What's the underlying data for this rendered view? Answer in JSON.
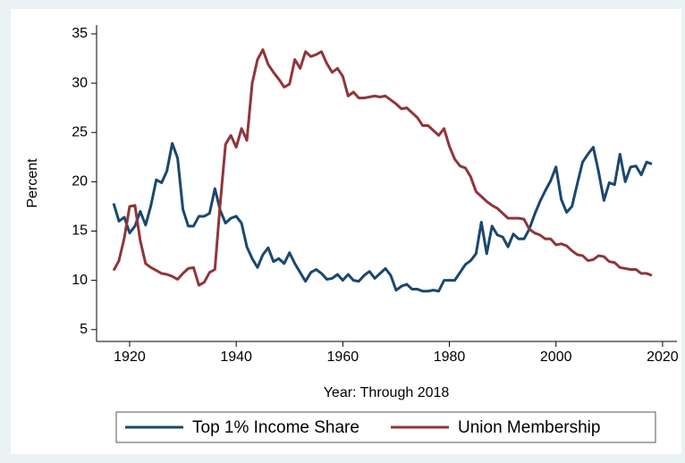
{
  "chart_data": {
    "type": "line",
    "x_label": "Year: Through 2018",
    "y_label": "Percent",
    "x": [
      1917,
      1918,
      1919,
      1920,
      1921,
      1922,
      1923,
      1924,
      1925,
      1926,
      1927,
      1928,
      1929,
      1930,
      1931,
      1932,
      1933,
      1934,
      1935,
      1936,
      1937,
      1938,
      1939,
      1940,
      1941,
      1942,
      1943,
      1944,
      1945,
      1946,
      1947,
      1948,
      1949,
      1950,
      1951,
      1952,
      1953,
      1954,
      1955,
      1956,
      1957,
      1958,
      1959,
      1960,
      1961,
      1962,
      1963,
      1964,
      1965,
      1966,
      1967,
      1968,
      1969,
      1970,
      1971,
      1972,
      1973,
      1974,
      1975,
      1976,
      1977,
      1978,
      1979,
      1980,
      1981,
      1982,
      1983,
      1984,
      1985,
      1986,
      1987,
      1988,
      1989,
      1990,
      1991,
      1992,
      1993,
      1994,
      1995,
      1996,
      1997,
      1998,
      1999,
      2000,
      2001,
      2002,
      2003,
      2004,
      2005,
      2006,
      2007,
      2008,
      2009,
      2010,
      2011,
      2012,
      2013,
      2014,
      2015,
      2016,
      2017,
      2018
    ],
    "series": [
      {
        "name": "Top 1% Income Share",
        "color": "#1a476f",
        "values": [
          17.8,
          16.0,
          16.4,
          14.8,
          15.5,
          17.0,
          15.6,
          17.6,
          20.2,
          19.9,
          21.1,
          23.9,
          22.4,
          17.2,
          15.5,
          15.5,
          16.5,
          16.5,
          16.8,
          19.3,
          17.1,
          15.8,
          16.3,
          16.5,
          15.8,
          13.4,
          12.2,
          11.3,
          12.6,
          13.3,
          11.9,
          12.2,
          11.7,
          12.8,
          11.7,
          10.8,
          9.9,
          10.8,
          11.1,
          10.7,
          10.1,
          10.2,
          10.6,
          10.0,
          10.6,
          10.0,
          9.9,
          10.5,
          10.9,
          10.2,
          10.7,
          11.2,
          10.5,
          9.0,
          9.4,
          9.6,
          9.1,
          9.1,
          8.9,
          8.9,
          9.0,
          8.9,
          10.0,
          10.0,
          10.0,
          10.8,
          11.6,
          12.0,
          12.7,
          15.9,
          12.7,
          15.5,
          14.6,
          14.4,
          13.4,
          14.7,
          14.2,
          14.2,
          15.2,
          16.7,
          18.0,
          19.1,
          20.1,
          21.5,
          18.2,
          16.9,
          17.5,
          19.8,
          22.0,
          22.8,
          23.5,
          21.0,
          18.1,
          19.9,
          19.7,
          22.8,
          20.0,
          21.5,
          21.6,
          20.7,
          22.0,
          21.8
        ]
      },
      {
        "name": "Union Membership",
        "color": "#90353b",
        "values": [
          11.0,
          12.0,
          14.3,
          17.5,
          17.6,
          14.0,
          11.7,
          11.3,
          11.0,
          10.7,
          10.6,
          10.4,
          10.1,
          10.7,
          11.2,
          11.3,
          9.5,
          9.8,
          10.8,
          11.1,
          17.8,
          23.8,
          24.7,
          23.5,
          25.4,
          24.2,
          30.0,
          32.4,
          33.4,
          31.9,
          31.1,
          30.4,
          29.6,
          29.9,
          32.4,
          31.5,
          33.2,
          32.7,
          32.9,
          33.2,
          32.0,
          31.1,
          31.5,
          30.7,
          28.7,
          29.1,
          28.5,
          28.5,
          28.6,
          28.7,
          28.6,
          28.7,
          28.3,
          27.9,
          27.4,
          27.5,
          27.0,
          26.5,
          25.7,
          25.7,
          25.2,
          24.7,
          25.4,
          23.6,
          22.3,
          21.6,
          21.4,
          20.5,
          19.0,
          18.5,
          18.0,
          17.6,
          17.3,
          16.8,
          16.3,
          16.3,
          16.3,
          16.2,
          15.2,
          14.8,
          14.6,
          14.2,
          14.2,
          13.6,
          13.7,
          13.5,
          13.0,
          12.6,
          12.5,
          12.0,
          12.1,
          12.5,
          12.4,
          11.9,
          11.8,
          11.3,
          11.2,
          11.1,
          11.1,
          10.7,
          10.7,
          10.5
        ]
      }
    ],
    "xlim": [
      1913.8,
      2022.7
    ],
    "xticks": [
      1920,
      1940,
      1960,
      1980,
      2000,
      2020
    ],
    "ylim": [
      3.8,
      35.9
    ],
    "yticks": [
      5,
      10,
      15,
      20,
      25,
      30,
      35
    ],
    "grid": false,
    "legend": "bottom"
  }
}
